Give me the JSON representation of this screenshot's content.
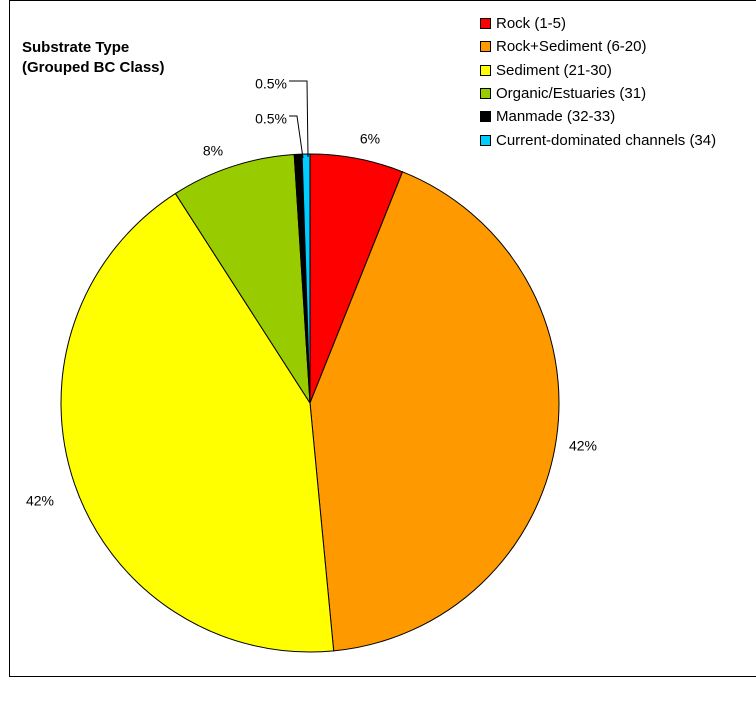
{
  "chart_data": {
    "type": "pie",
    "title": [
      "Substrate Type",
      "(Grouped BC Class)"
    ],
    "start_angle_deg": 0,
    "direction": "clockwise",
    "legend_position": "top-right",
    "slices": [
      {
        "label": "Rock (1-5)",
        "value": 6,
        "data_label": "6%",
        "color": "#ff0000"
      },
      {
        "label": "Rock+Sediment (6-20)",
        "value": 42,
        "data_label": "42%",
        "color": "#ff9900"
      },
      {
        "label": "Sediment (21-30)",
        "value": 42,
        "data_label": "42%",
        "color": "#ffff00"
      },
      {
        "label": "Organic/Estuaries (31)",
        "value": 8,
        "data_label": "8%",
        "color": "#99cc00"
      },
      {
        "label": "Manmade (32-33)",
        "value": 0.5,
        "data_label": "0.5%",
        "color": "#000000"
      },
      {
        "label": "Current-dominated channels (34)",
        "value": 0.5,
        "data_label": "0.5%",
        "color": "#00ccff"
      }
    ]
  }
}
